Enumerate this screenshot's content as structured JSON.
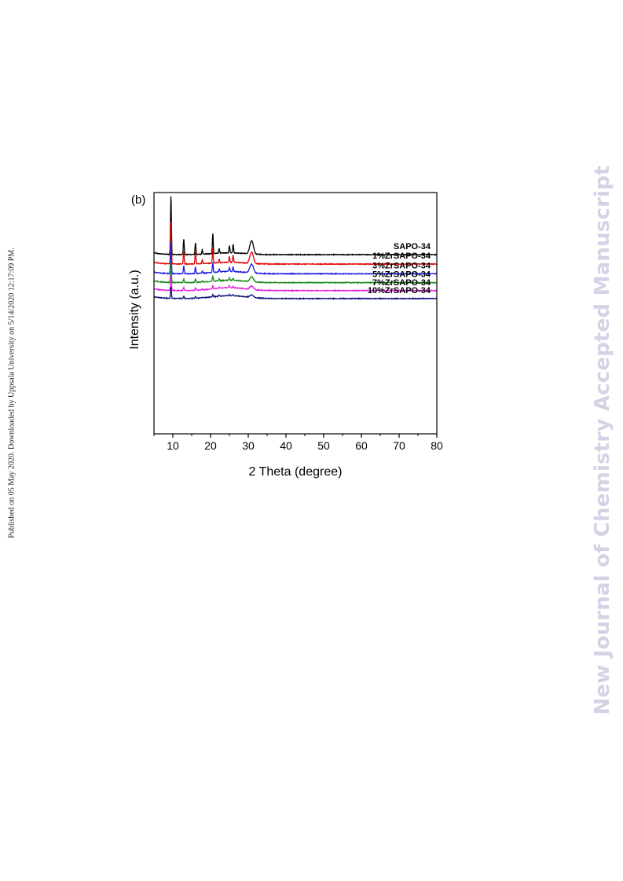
{
  "page": {
    "side_note": "Published on 05 May 2020. Downloaded by Uppsala University on 5/14/2020 12:17:09 PM.",
    "watermark": "New Journal of Chemistry Accepted Manuscript"
  },
  "chart_data": {
    "type": "line",
    "panel_label": "(b)",
    "title": "",
    "xlabel": "2 Theta (degree)",
    "ylabel": "Intensity (a.u.)",
    "xlim": [
      5,
      80
    ],
    "xticks": [
      10,
      20,
      30,
      40,
      50,
      60,
      70,
      80
    ],
    "y_ticks_visible": false,
    "grid": false,
    "legend": "inline labels at right end of each trace",
    "peak_positions_2theta": [
      9.5,
      12.9,
      16.0,
      17.8,
      20.6,
      22.3,
      25.0,
      26.0,
      30.6,
      31.1
    ],
    "series": [
      {
        "name": "SAPO-34",
        "color": "#000000",
        "baseline": 0.0,
        "peak_heights": [
          1.0,
          0.26,
          0.2,
          0.08,
          0.34,
          0.08,
          0.12,
          0.15,
          0.12,
          0.15
        ],
        "broad_hump": 0.03
      },
      {
        "name": "1%ZrSAPO-34",
        "color": "#e00000",
        "baseline": -0.16,
        "peak_heights": [
          0.72,
          0.22,
          0.2,
          0.06,
          0.25,
          0.06,
          0.1,
          0.12,
          0.1,
          0.13
        ],
        "broad_hump": 0.03
      },
      {
        "name": "3%ZrSAPO-34",
        "color": "#1a1ae0",
        "baseline": -0.325,
        "peak_heights": [
          0.55,
          0.13,
          0.11,
          0.04,
          0.17,
          0.05,
          0.07,
          0.08,
          0.08,
          0.1
        ],
        "broad_hump": 0.04
      },
      {
        "name": "5%ZrSAPO-34",
        "color": "#1a8a1a",
        "baseline": -0.475,
        "peak_heights": [
          0.36,
          0.06,
          0.06,
          0.02,
          0.09,
          0.03,
          0.04,
          0.04,
          0.04,
          0.06
        ],
        "broad_hump": 0.04
      },
      {
        "name": "7%ZrSAPO-34",
        "color": "#e020e0",
        "baseline": -0.61,
        "peak_heights": [
          0.27,
          0.05,
          0.04,
          0.02,
          0.06,
          0.02,
          0.03,
          0.03,
          0.03,
          0.04
        ],
        "broad_hump": 0.05
      },
      {
        "name": "10%ZrSAPO-34",
        "color": "#10107a",
        "baseline": -0.745,
        "peak_heights": [
          0.2,
          0.04,
          0.03,
          0.01,
          0.04,
          0.02,
          0.02,
          0.02,
          0.02,
          0.03
        ],
        "broad_hump": 0.05
      }
    ]
  }
}
